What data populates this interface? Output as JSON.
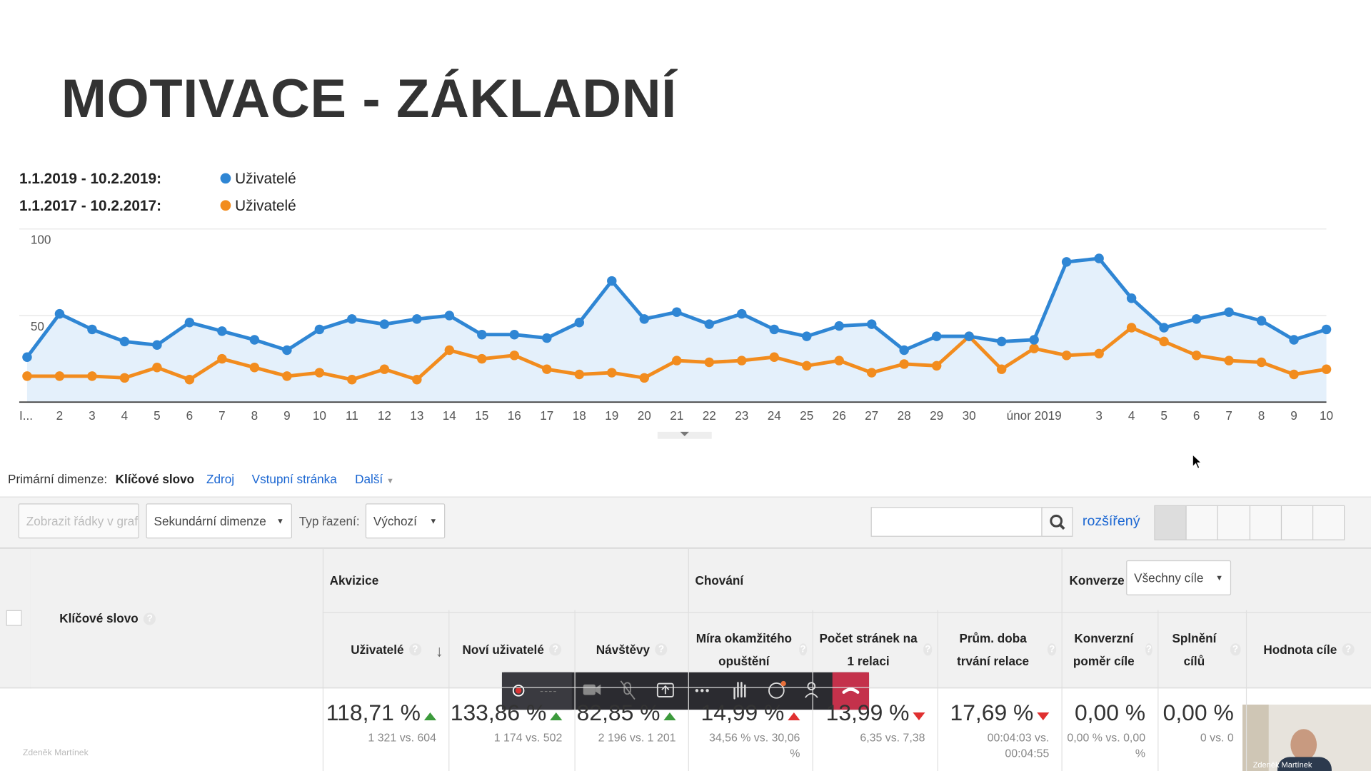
{
  "slide": {
    "title": "MOTIVACE - ZÁKLADNÍ"
  },
  "chart_data": {
    "type": "line",
    "categories": [
      "I...",
      "2",
      "3",
      "4",
      "5",
      "6",
      "7",
      "8",
      "9",
      "10",
      "11",
      "12",
      "13",
      "14",
      "15",
      "16",
      "17",
      "18",
      "19",
      "20",
      "21",
      "22",
      "23",
      "24",
      "25",
      "26",
      "27",
      "28",
      "29",
      "30",
      null,
      "únor 2019",
      null,
      "3",
      "4",
      "5",
      "6",
      "7",
      "8",
      "9",
      "10"
    ],
    "series": [
      {
        "name": "Uživatelé",
        "period": "1.1.2019 - 10.2.2019:",
        "color": "#2f86d4",
        "fill": "#e4f0fb",
        "values": [
          26,
          51,
          42,
          35,
          33,
          46,
          41,
          36,
          30,
          42,
          48,
          45,
          48,
          50,
          39,
          39,
          37,
          46,
          70,
          48,
          52,
          45,
          51,
          42,
          38,
          44,
          45,
          30,
          38,
          38,
          35,
          36,
          81,
          83,
          60,
          43,
          48,
          52,
          47,
          36,
          42
        ]
      },
      {
        "name": "Uživatelé",
        "period": "1.1.2017 - 10.2.2017:",
        "color": "#f28c1e",
        "values": [
          15,
          15,
          15,
          14,
          20,
          13,
          25,
          20,
          15,
          17,
          13,
          19,
          13,
          30,
          25,
          27,
          19,
          16,
          17,
          14,
          24,
          23,
          24,
          26,
          21,
          24,
          17,
          22,
          21,
          38,
          19,
          31,
          27,
          28,
          43,
          35,
          27,
          24,
          23,
          16,
          19
        ]
      }
    ],
    "ylim": [
      0,
      100
    ],
    "yticks": [
      50,
      100
    ],
    "grid": true
  },
  "dimension_bar": {
    "label": "Primární dimenze:",
    "active": "Klíčové slovo",
    "links": [
      "Zdroj",
      "Vstupní stránka",
      "Další"
    ]
  },
  "toolbar": {
    "plot_rows": "Zobrazit řádky v grafu",
    "secondary": "Sekundární dimenze",
    "sort_label": "Typ řazení:",
    "sort_value": "Výchozí",
    "advanced": "rozšířený"
  },
  "table": {
    "groups": [
      "Akvizice",
      "Chování",
      "Konverze"
    ],
    "goal_select": "Všechny cíle",
    "key_column": "Klíčové slovo",
    "columns": [
      "Uživatelé",
      "Noví uživatelé",
      "Návštěvy",
      "Míra okamžitého opuštění",
      "Počet stránek na 1 relaci",
      "Prům. doba trvání relace",
      "Konverzní poměr cíle",
      "Splnění cílů",
      "Hodnota cíle"
    ],
    "totals": [
      {
        "value": "118,71 %",
        "compare": "1 321 vs. 604"
      },
      {
        "value": "133,86 %",
        "compare": "1 174 vs. 502"
      },
      {
        "value": "82,85 %",
        "compare": "2 196 vs. 1 201"
      },
      {
        "value": "14,99 %",
        "compare": "34,56 % vs. 30,06 %"
      },
      {
        "value": "13,99 %",
        "compare": "6,35 vs. 7,38"
      },
      {
        "value": "17,69 %",
        "compare": "00:04:03 vs. 00:04:55"
      },
      {
        "value": "0,00 %",
        "compare": "0,00 % vs. 0,00 %"
      },
      {
        "value": "0,00 %",
        "compare": "0 vs. 0"
      }
    ]
  },
  "meeting": {
    "presenter": "Zdeněk Martínek"
  }
}
